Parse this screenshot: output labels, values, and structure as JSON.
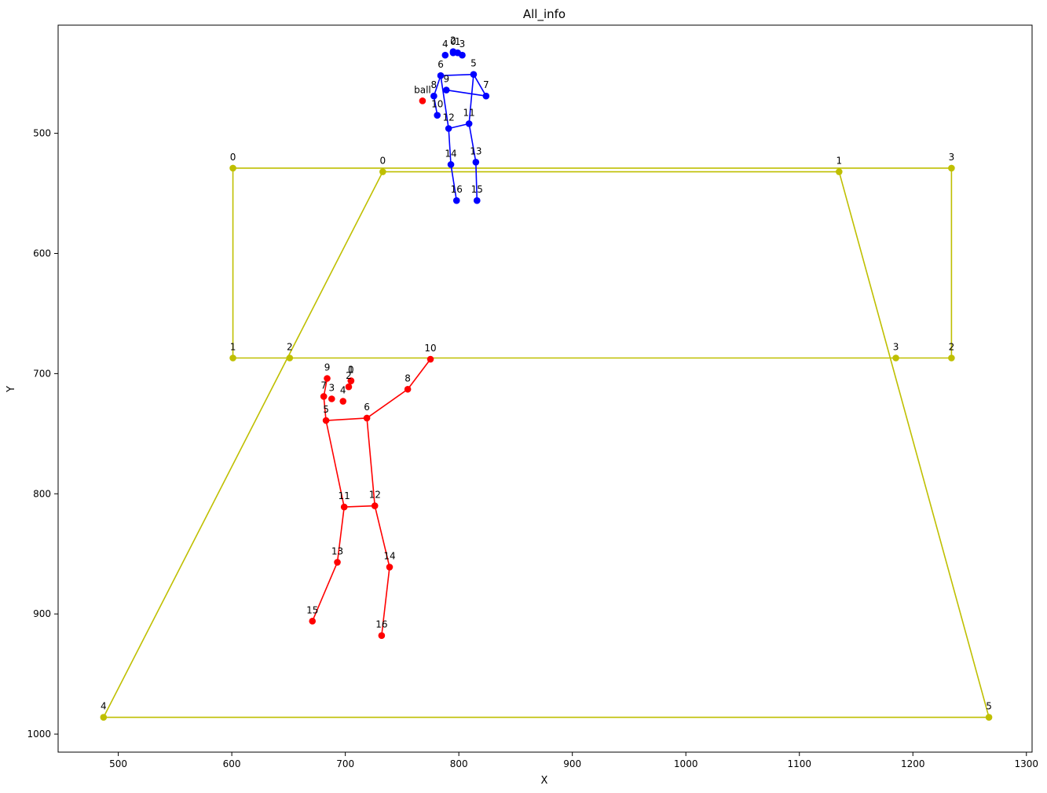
{
  "chart_data": {
    "type": "scatter",
    "title": "All_info",
    "xlabel": "X",
    "ylabel": "Y",
    "xlim": [
      447,
      1305
    ],
    "ylim": [
      1015,
      410
    ],
    "y_inverted": true,
    "grid": false,
    "legend": "none",
    "x_ticks": [
      500,
      600,
      700,
      800,
      900,
      1000,
      1100,
      1200,
      1300
    ],
    "y_ticks": [
      500,
      600,
      700,
      800,
      900,
      1000
    ],
    "colors": {
      "court": "#bfbf00",
      "player_top": "#0000ff",
      "player_bottom": "#ff0000",
      "ball": "#ff0000"
    },
    "series": [
      {
        "color_key": "court",
        "points": [
          {
            "label": "0",
            "x": 601,
            "y": 529
          },
          {
            "label": "1",
            "x": 601,
            "y": 687
          },
          {
            "label": "2",
            "x": 1234,
            "y": 687
          },
          {
            "label": "3",
            "x": 1234,
            "y": 529
          }
        ],
        "segments": [
          [
            0,
            1
          ],
          [
            1,
            2
          ],
          [
            2,
            3
          ],
          [
            3,
            0
          ]
        ]
      },
      {
        "color_key": "court",
        "points": [
          {
            "label": "0",
            "x": 733,
            "y": 532
          },
          {
            "label": "1",
            "x": 1135,
            "y": 532
          },
          {
            "label": "2",
            "x": 651,
            "y": 687
          },
          {
            "label": "3",
            "x": 1185,
            "y": 687
          },
          {
            "label": "4",
            "x": 487,
            "y": 986
          },
          {
            "label": "5",
            "x": 1267,
            "y": 986
          }
        ],
        "segments": [
          [
            0,
            1
          ],
          [
            0,
            4
          ],
          [
            1,
            5
          ],
          [
            4,
            5
          ]
        ]
      },
      {
        "color_key": "player_top",
        "points": [
          {
            "label": "0",
            "x": 795,
            "y": 433
          },
          {
            "label": "1",
            "x": 799,
            "y": 433
          },
          {
            "label": "2",
            "x": 795,
            "y": 432
          },
          {
            "label": "3",
            "x": 803,
            "y": 435
          },
          {
            "label": "4",
            "x": 788,
            "y": 435
          },
          {
            "label": "5",
            "x": 813,
            "y": 451
          },
          {
            "label": "6",
            "x": 784,
            "y": 452
          },
          {
            "label": "7",
            "x": 824,
            "y": 469
          },
          {
            "label": "8",
            "x": 778,
            "y": 469
          },
          {
            "label": "9",
            "x": 789,
            "y": 464
          },
          {
            "label": "10",
            "x": 781,
            "y": 485
          },
          {
            "label": "11",
            "x": 809,
            "y": 492
          },
          {
            "label": "12",
            "x": 791,
            "y": 496
          },
          {
            "label": "13",
            "x": 815,
            "y": 524
          },
          {
            "label": "14",
            "x": 793,
            "y": 526
          },
          {
            "label": "15",
            "x": 816,
            "y": 556
          },
          {
            "label": "16",
            "x": 798,
            "y": 556
          }
        ],
        "segments": [
          [
            6,
            5
          ],
          [
            5,
            7
          ],
          [
            7,
            9
          ],
          [
            6,
            8
          ],
          [
            8,
            10
          ],
          [
            5,
            11
          ],
          [
            6,
            12
          ],
          [
            11,
            12
          ],
          [
            11,
            13
          ],
          [
            12,
            14
          ],
          [
            13,
            15
          ],
          [
            14,
            16
          ]
        ]
      },
      {
        "color_key": "player_bottom",
        "points": [
          {
            "label": "0",
            "x": 705,
            "y": 706
          },
          {
            "label": "1",
            "x": 705,
            "y": 706
          },
          {
            "label": "2",
            "x": 703,
            "y": 711
          },
          {
            "label": "3",
            "x": 688,
            "y": 721
          },
          {
            "label": "4",
            "x": 698,
            "y": 723
          },
          {
            "label": "5",
            "x": 683,
            "y": 739
          },
          {
            "label": "6",
            "x": 719,
            "y": 737
          },
          {
            "label": "7",
            "x": 681,
            "y": 719
          },
          {
            "label": "8",
            "x": 755,
            "y": 713
          },
          {
            "label": "9",
            "x": 684,
            "y": 704
          },
          {
            "label": "10",
            "x": 775,
            "y": 688
          },
          {
            "label": "11",
            "x": 699,
            "y": 811
          },
          {
            "label": "12",
            "x": 726,
            "y": 810
          },
          {
            "label": "13",
            "x": 693,
            "y": 857
          },
          {
            "label": "14",
            "x": 739,
            "y": 861
          },
          {
            "label": "15",
            "x": 671,
            "y": 906
          },
          {
            "label": "16",
            "x": 732,
            "y": 918
          }
        ],
        "segments": [
          [
            5,
            6
          ],
          [
            6,
            8
          ],
          [
            8,
            10
          ],
          [
            5,
            7
          ],
          [
            7,
            9
          ],
          [
            5,
            11
          ],
          [
            6,
            12
          ],
          [
            11,
            12
          ],
          [
            11,
            13
          ],
          [
            12,
            14
          ],
          [
            13,
            15
          ],
          [
            14,
            16
          ]
        ]
      },
      {
        "color_key": "ball",
        "points": [
          {
            "label": "ball",
            "x": 768,
            "y": 473
          }
        ],
        "segments": []
      }
    ]
  }
}
